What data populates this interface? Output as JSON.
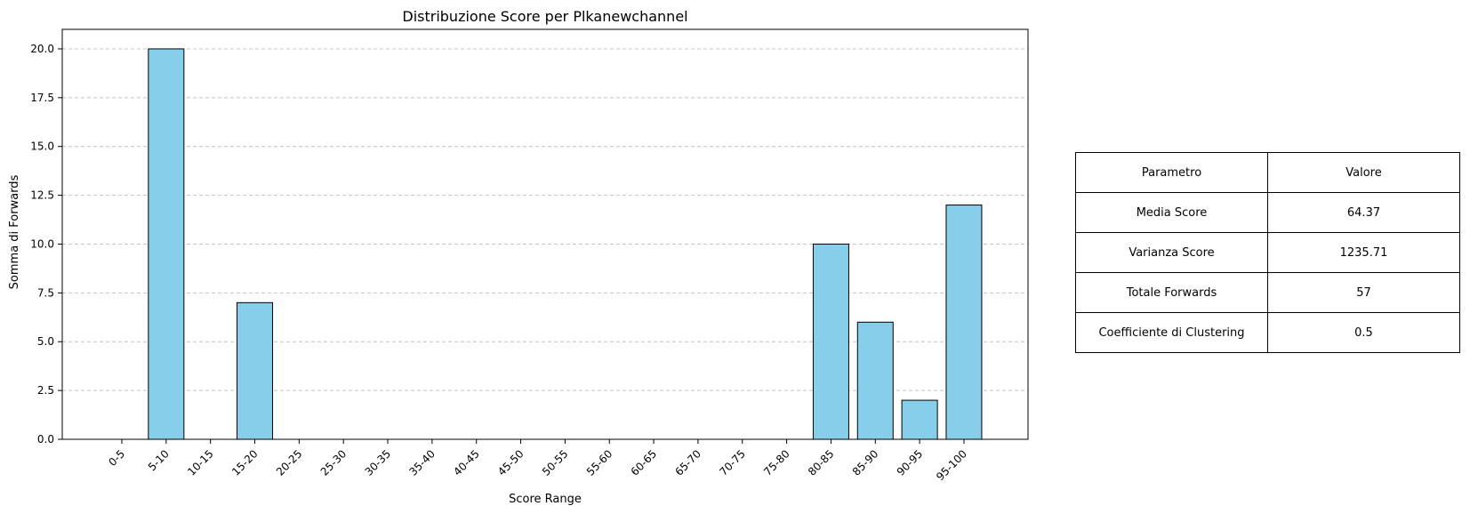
{
  "chart_data": {
    "type": "bar",
    "title": "Distribuzione Score per Plkanewchannel",
    "xlabel": "Score Range",
    "ylabel": "Somma di Forwards",
    "categories": [
      "0-5",
      "5-10",
      "10-15",
      "15-20",
      "20-25",
      "25-30",
      "30-35",
      "35-40",
      "40-45",
      "45-50",
      "50-55",
      "55-60",
      "60-65",
      "65-70",
      "70-75",
      "75-80",
      "80-85",
      "85-90",
      "90-95",
      "95-100"
    ],
    "values": [
      0,
      20,
      0,
      7,
      0,
      0,
      0,
      0,
      0,
      0,
      0,
      0,
      0,
      0,
      0,
      0,
      10,
      6,
      2,
      12
    ],
    "ylim": [
      0,
      21
    ],
    "yticks": [
      0,
      2.5,
      5,
      7.5,
      10,
      12.5,
      15,
      17.5,
      20
    ],
    "ytick_labels": [
      "0.0",
      "2.5",
      "5.0",
      "7.5",
      "10.0",
      "12.5",
      "15.0",
      "17.5",
      "20.0"
    ],
    "grid": "y-dashed",
    "bar_color": "#87ceeb",
    "edge_color": "#000000"
  },
  "table": {
    "header": [
      "Parametro",
      "Valore"
    ],
    "rows": [
      [
        "Media Score",
        "64.37"
      ],
      [
        "Varianza Score",
        "1235.71"
      ],
      [
        "Totale Forwards",
        "57"
      ],
      [
        "Coefficiente di Clustering",
        "0.5"
      ]
    ]
  }
}
